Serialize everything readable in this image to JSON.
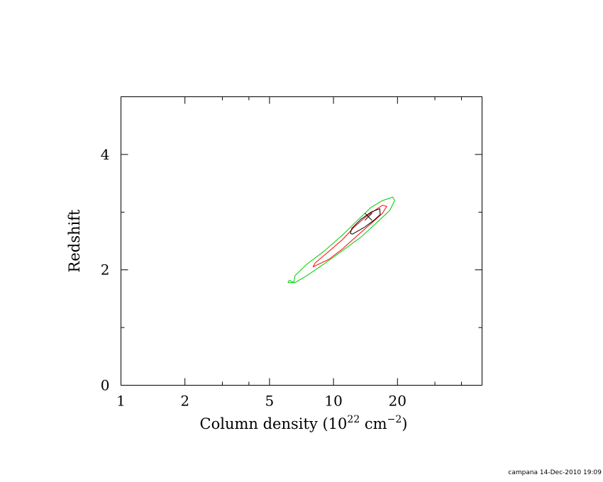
{
  "chart_data": {
    "type": "line",
    "xscale": "log",
    "xlim": [
      1,
      50
    ],
    "ylim": [
      0,
      5
    ],
    "xlabel": {
      "prefix": "Column density (10",
      "exponent": "22",
      "unit": " cm",
      "unit_exponent": "−2",
      "suffix": ")"
    },
    "ylabel": "Redshift",
    "xticks": [
      1,
      2,
      5,
      10,
      20
    ],
    "xtick_labels": [
      "1",
      "2",
      "5",
      "10",
      "20"
    ],
    "yticks": [
      0,
      2,
      4
    ],
    "ytick_labels": [
      "0",
      "2",
      "4"
    ],
    "best_fit": {
      "x": 14.6,
      "y": 2.92,
      "marker": "cross"
    },
    "series": [
      {
        "color": "#00cc00",
        "x": [
          6.1,
          6.2,
          6.5,
          6.6,
          7.5,
          9.0,
          11.0,
          13.0,
          15.0,
          17.0,
          19.0,
          19.4,
          18.4,
          16.0,
          13.5,
          11.0,
          9.0,
          7.5,
          6.6,
          6.1
        ],
        "y": [
          1.78,
          1.82,
          1.78,
          1.9,
          2.1,
          2.32,
          2.6,
          2.86,
          3.08,
          3.2,
          3.26,
          3.2,
          3.03,
          2.82,
          2.57,
          2.33,
          2.1,
          1.9,
          1.78,
          1.78
        ]
      },
      {
        "color": "#ff0000",
        "x": [
          8.0,
          8.2,
          9.5,
          11.0,
          12.5,
          14.0,
          15.5,
          17.0,
          17.8,
          17.0,
          15.0,
          13.0,
          11.0,
          9.5,
          8.0
        ],
        "y": [
          2.05,
          2.12,
          2.32,
          2.52,
          2.74,
          2.9,
          3.02,
          3.12,
          3.1,
          2.98,
          2.8,
          2.6,
          2.36,
          2.18,
          2.05
        ]
      },
      {
        "color": "#000000",
        "x": [
          12.0,
          12.2,
          13.5,
          15.0,
          16.5,
          16.6,
          15.5,
          14.0,
          12.3,
          12.0
        ],
        "y": [
          2.63,
          2.72,
          2.88,
          3.0,
          3.06,
          2.96,
          2.86,
          2.74,
          2.62,
          2.63
        ]
      }
    ]
  },
  "footer": "campana 14-Dec-2010 19:09"
}
